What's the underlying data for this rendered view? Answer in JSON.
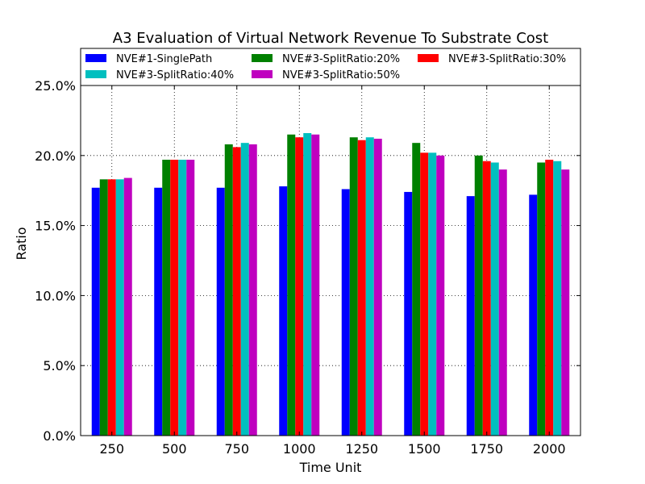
{
  "chart_data": {
    "type": "bar",
    "title": "A3 Evaluation of Virtual Network Revenue To Substrate Cost",
    "xlabel": "Time Unit",
    "ylabel": "Ratio",
    "categories": [
      "250",
      "500",
      "750",
      "1000",
      "1250",
      "1500",
      "1750",
      "2000"
    ],
    "ylim": [
      0,
      0.25
    ],
    "yticks": [
      0.0,
      0.05,
      0.1,
      0.15,
      0.2,
      0.25
    ],
    "ytick_labels": [
      "0.0%",
      "5.0%",
      "10.0%",
      "15.0%",
      "20.0%",
      "25.0%"
    ],
    "grid": true,
    "legend_position": "top",
    "series": [
      {
        "name": "NVE#1-SinglePath",
        "color": "#0000ff",
        "values": [
          0.177,
          0.177,
          0.177,
          0.178,
          0.176,
          0.174,
          0.171,
          0.172
        ]
      },
      {
        "name": "NVE#3-SplitRatio:20%",
        "color": "#008000",
        "values": [
          0.183,
          0.197,
          0.208,
          0.215,
          0.213,
          0.209,
          0.2,
          0.195
        ]
      },
      {
        "name": "NVE#3-SplitRatio:30%",
        "color": "#ff0000",
        "values": [
          0.183,
          0.197,
          0.206,
          0.213,
          0.211,
          0.202,
          0.196,
          0.197
        ]
      },
      {
        "name": "NVE#3-SplitRatio:40%",
        "color": "#00bfbf",
        "values": [
          0.183,
          0.197,
          0.209,
          0.216,
          0.213,
          0.202,
          0.195,
          0.196
        ]
      },
      {
        "name": "NVE#3-SplitRatio:50%",
        "color": "#bf00bf",
        "values": [
          0.184,
          0.197,
          0.208,
          0.215,
          0.212,
          0.2,
          0.19,
          0.19
        ]
      }
    ]
  }
}
